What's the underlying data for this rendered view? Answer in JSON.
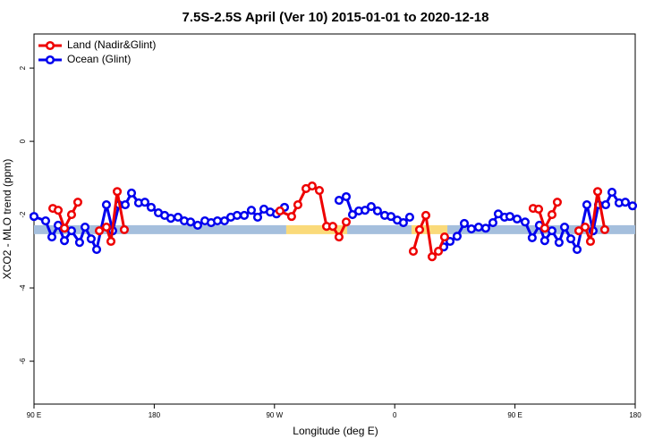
{
  "chart_data": {
    "type": "line",
    "title": "7.5S-2.5S April (Ver 10)   2015-01-01 to 2020-12-18",
    "xlabel": "Longitude (deg E)",
    "ylabel": "XCO2 - MLO trend (ppm)",
    "xlim": [
      90,
      540
    ],
    "ylim": [
      -7.17,
      2.93
    ],
    "xticks": [
      {
        "value": 90,
        "label": "90 E"
      },
      {
        "value": 180,
        "label": "180"
      },
      {
        "value": 270,
        "label": "90 W"
      },
      {
        "value": 360,
        "label": "0"
      },
      {
        "value": 450,
        "label": "90 E"
      },
      {
        "value": 540,
        "label": "180"
      }
    ],
    "yticks": [
      -6,
      -4,
      -2,
      0,
      2
    ],
    "legend": "top-left",
    "band": {
      "value": -2.41,
      "segments": [
        {
          "x": [
            90,
            278.8
          ],
          "color": "#a5bfdd"
        },
        {
          "x": [
            278.8,
            324.4
          ],
          "color": "#fada7a"
        },
        {
          "x": [
            324.4,
            372.6
          ],
          "color": "#a5bfdd"
        },
        {
          "x": [
            372.6,
            399.4
          ],
          "color": "#fada7a"
        },
        {
          "x": [
            399.4,
            540
          ],
          "color": "#a5bfdd"
        }
      ]
    },
    "series": [
      {
        "name": "Land (Nadir&Glint)",
        "color": "#ee0000",
        "x": [
          104.1,
          108.1,
          112.8,
          118.1,
          122.8,
          null,
          138.9,
          144.2,
          147.6,
          152.3,
          157.6,
          null,
          274.1,
          282.8,
          287.5,
          293.6,
          298.2,
          303.6,
          309.0,
          313.6,
          318.3,
          323.7,
          null,
          373.9,
          378.6,
          383.3,
          388.0,
          392.7,
          397.3,
          null,
          463.6,
          467.7,
          472.3,
          477.7,
          481.7,
          null,
          497.8,
          502.5,
          506.5,
          511.9,
          517.2
        ],
        "values": [
          -1.83,
          -1.88,
          -2.37,
          -2.0,
          -1.66,
          null,
          -2.44,
          -2.34,
          -2.73,
          -1.37,
          -2.41,
          null,
          -1.9,
          -2.05,
          -1.73,
          -1.29,
          -1.22,
          -1.34,
          -2.32,
          -2.32,
          -2.61,
          -2.2,
          null,
          -3.0,
          -2.41,
          -2.02,
          -3.15,
          -3.0,
          -2.61,
          null,
          -1.83,
          -1.85,
          -2.37,
          -2.0,
          -1.66,
          null,
          -2.44,
          -2.34,
          -2.73,
          -1.37,
          -2.41
        ]
      },
      {
        "name": "Ocean (Glint)",
        "color": "#0000ee",
        "x": [
          90,
          98.7,
          103.4,
          108.1,
          112.8,
          118.1,
          124.1,
          128.2,
          132.8,
          136.9,
          144.2,
          148.9,
          153.6,
          158.3,
          163.0,
          168.3,
          173.0,
          177.7,
          183.1,
          187.8,
          192.4,
          197.8,
          202.5,
          207.2,
          212.5,
          217.9,
          222.6,
          227.3,
          232.6,
          237.3,
          242.0,
          247.4,
          252.7,
          257.4,
          262.1,
          266.8,
          271.5,
          277.5,
          null,
          318.3,
          323.7,
          328.4,
          333.1,
          337.8,
          342.4,
          347.1,
          352.5,
          357.2,
          361.9,
          366.5,
          371.2,
          null,
          396.7,
          401.4,
          406.7,
          412.1,
          417.4,
          422.8,
          428.1,
          433.5,
          437.5,
          442.2,
          446.2,
          451.6,
          457.6,
          462.9,
          468.3,
          472.3,
          477.7,
          483.0,
          487.1,
          491.8,
          496.5,
          503.8,
          508.5,
          512.5,
          517.9,
          522.6,
          527.9,
          532.6,
          538.0
        ],
        "values": [
          -2.05,
          -2.17,
          -2.61,
          -2.29,
          -2.71,
          -2.44,
          -2.76,
          -2.34,
          -2.66,
          -2.95,
          -1.73,
          -2.44,
          -1.73,
          -1.73,
          -1.41,
          -1.68,
          -1.66,
          -1.8,
          -1.95,
          -2.02,
          -2.1,
          -2.07,
          -2.17,
          -2.2,
          -2.29,
          -2.17,
          -2.22,
          -2.17,
          -2.17,
          -2.07,
          -2.02,
          -2.02,
          -1.88,
          -2.07,
          -1.85,
          -1.93,
          -1.98,
          -1.8,
          null,
          -1.61,
          -1.51,
          -2.0,
          -1.9,
          -1.88,
          -1.78,
          -1.9,
          -2.02,
          -2.05,
          -2.15,
          -2.22,
          -2.07,
          null,
          -2.88,
          -2.73,
          -2.59,
          -2.24,
          -2.39,
          -2.34,
          -2.37,
          -2.22,
          -1.98,
          -2.07,
          -2.05,
          -2.12,
          -2.2,
          -2.63,
          -2.29,
          -2.71,
          -2.44,
          -2.76,
          -2.34,
          -2.66,
          -2.95,
          -1.73,
          -2.44,
          -1.73,
          -1.73,
          -1.39,
          -1.68,
          -1.66,
          -1.76
        ]
      }
    ]
  }
}
